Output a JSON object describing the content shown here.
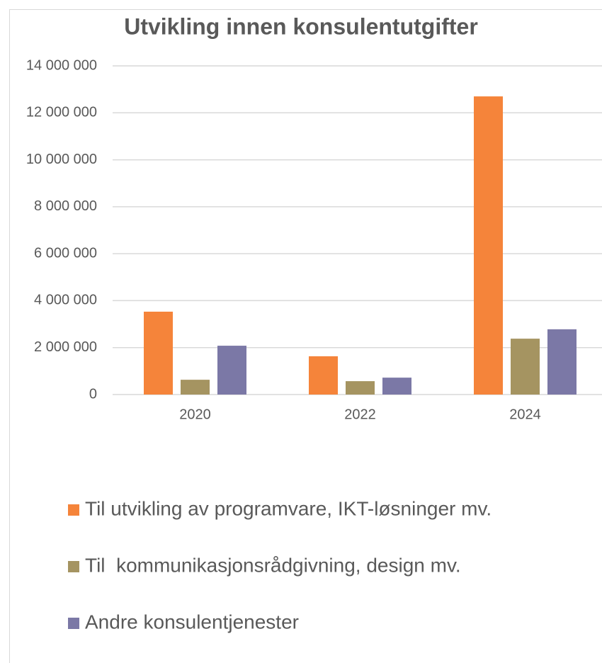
{
  "chart_data": {
    "type": "bar",
    "title": "Utvikling innen konsulentutgifter",
    "categories": [
      "2020",
      "2022",
      "2024"
    ],
    "series": [
      {
        "name": "Til utvikling av programvare, IKT-løsninger mv.",
        "color": "#f5843a",
        "values": [
          3530000,
          1630000,
          12700000
        ]
      },
      {
        "name": "Til  kommunikasjonsrådgivning, design mv.",
        "color": "#a59461",
        "values": [
          630000,
          570000,
          2380000
        ]
      },
      {
        "name": "Andre konsulentjenester",
        "color": "#7b78a6",
        "values": [
          2080000,
          720000,
          2780000
        ]
      }
    ],
    "ylim": [
      0,
      14000000
    ],
    "yticks": [
      0,
      {
        "value": 2000000,
        "label": "2 000 000"
      },
      {
        "value": 4000000,
        "label": "4 000 000"
      },
      {
        "value": 6000000,
        "label": "6 000 000"
      },
      {
        "value": 8000000,
        "label": "8 000 000"
      },
      {
        "value": 10000000,
        "label": "10 000 000"
      },
      {
        "value": 12000000,
        "label": "12 000 000"
      },
      {
        "value": 14000000,
        "label": "14 000 000"
      }
    ],
    "grid": true,
    "legend": "bottom"
  }
}
